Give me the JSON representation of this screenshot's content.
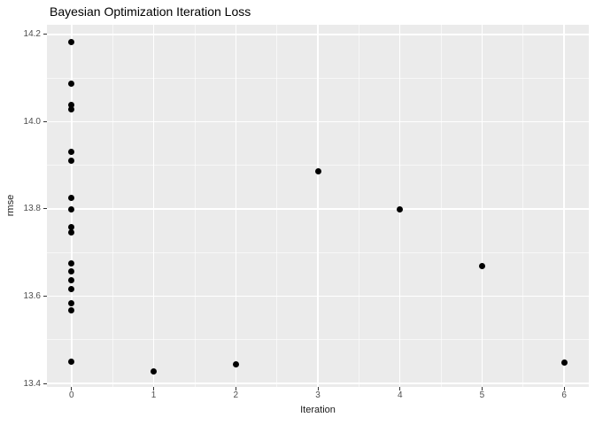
{
  "chart_data": {
    "type": "scatter",
    "title": "Bayesian Optimization Iteration Loss",
    "xlabel": "Iteration",
    "ylabel": "rmse",
    "xlim": [
      -0.3,
      6.3
    ],
    "ylim": [
      13.392,
      14.222
    ],
    "x_tick_values": [
      0,
      1,
      2,
      3,
      4,
      5,
      6
    ],
    "x_tick_labels": [
      "0",
      "1",
      "2",
      "3",
      "4",
      "5",
      "6"
    ],
    "y_tick_values": [
      13.4,
      13.6,
      13.8,
      14.0,
      14.2
    ],
    "y_tick_labels": [
      "13.4",
      "13.6",
      "13.8",
      "14.0",
      "14.2"
    ],
    "x_minor_gridlines": [
      0.5,
      1.5,
      2.5,
      3.5,
      4.5,
      5.5
    ],
    "y_minor_gridlines": [
      13.5,
      13.7,
      13.9,
      14.1
    ],
    "grid": true,
    "legend": "none",
    "points": [
      [
        0,
        14.182
      ],
      [
        0,
        14.088
      ],
      [
        0,
        14.039
      ],
      [
        0,
        14.028
      ],
      [
        0,
        13.931
      ],
      [
        0,
        13.911
      ],
      [
        0,
        13.826
      ],
      [
        0,
        13.798
      ],
      [
        0,
        13.758
      ],
      [
        0,
        13.746
      ],
      [
        0,
        13.675
      ],
      [
        0,
        13.657
      ],
      [
        0,
        13.637
      ],
      [
        0,
        13.617
      ],
      [
        0,
        13.583
      ],
      [
        0,
        13.567
      ],
      [
        0,
        13.449
      ],
      [
        1,
        13.427
      ],
      [
        2,
        13.443
      ],
      [
        3,
        13.887
      ],
      [
        4,
        13.798
      ],
      [
        5,
        13.669
      ],
      [
        6,
        13.447
      ]
    ],
    "style": {
      "panel_bg": "#EBEBEB",
      "gridline_color": "#FFFFFF",
      "point_color": "#000000",
      "tick_mark_color": "#333333",
      "tick_label_color": "#4D4D4D",
      "title_color": "#000000",
      "axis_title_color": "#1A1A1A"
    }
  }
}
